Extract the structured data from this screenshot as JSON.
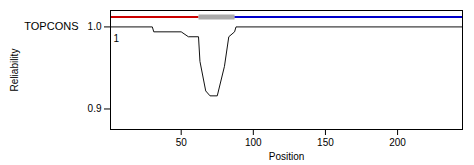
{
  "chart_data": {
    "type": "line",
    "xlabel": "Position",
    "ylabel": "Reliability",
    "xlim": [
      1,
      245
    ],
    "ylim": [
      0.875,
      1.02
    ],
    "xticks": [
      50,
      100,
      150,
      200
    ],
    "yticks": [
      0.9,
      {
        "value": 1.0,
        "label": "1.0"
      }
    ],
    "grid": false,
    "series": [
      {
        "color": "#cc0000",
        "x": [
          1,
          62
        ],
        "values": [
          1.012,
          1.012
        ]
      },
      {
        "color": "#aaaaaa",
        "x": [
          62,
          87
        ],
        "values": [
          1.012,
          1.012
        ]
      },
      {
        "color": "#0000cc",
        "x": [
          87,
          245
        ],
        "values": [
          1.012,
          1.012
        ]
      },
      {
        "color": "#111111",
        "x": [
          1,
          30,
          31,
          50,
          55,
          62,
          63,
          67,
          70,
          75,
          80,
          83,
          87,
          88,
          245
        ],
        "values": [
          1.0,
          1.0,
          0.994,
          0.994,
          0.988,
          0.988,
          0.958,
          0.922,
          0.916,
          0.916,
          0.952,
          0.988,
          0.994,
          1.0,
          1.0
        ]
      }
    ],
    "annotations": [
      {
        "text": "TOPCONS",
        "y": 1.0
      },
      {
        "text": "1"
      }
    ]
  }
}
